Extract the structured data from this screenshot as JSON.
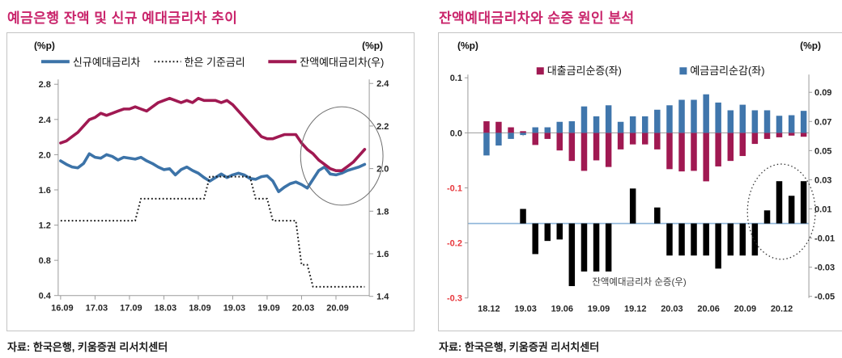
{
  "panels": [
    {
      "title": "예금은행 잔액 및 신규 예대금리차 추이",
      "source": "자료: 한국은행, 키움증권 리서치센터",
      "left_axis_unit": "(%p)",
      "right_axis_unit": "(%p)"
    },
    {
      "title": "잔액예대금리차와 순증 원인 분석",
      "source": "자료: 한국은행, 키움증권 리서치센터",
      "left_axis_unit": "(%p)",
      "right_axis_unit": "(%p)"
    }
  ],
  "colors": {
    "title": "#c9246b",
    "blue_line": "#3c73a8",
    "maroon": "#a01952",
    "policy_dotted": "#1a1a1a",
    "black_bar": "#000000",
    "baseline_blue": "#8db4d9",
    "axis_gray": "#9b9b9b",
    "tick_text": "#262626",
    "negative_tick_red": "#e8383d",
    "annotation_gray": "#404040",
    "ellipse_solid": "#6e6e6e",
    "ellipse_dotted": "#333333"
  },
  "chart_data": [
    {
      "type": "line",
      "title": "예금은행 잔액 및 신규 예대금리차 추이",
      "x_start": "16.09",
      "x_end": "21.02",
      "n_points": 54,
      "x_tick_labels": [
        "16.09",
        "17.03",
        "17.09",
        "18.03",
        "18.09",
        "19.03",
        "19.09",
        "20.03",
        "20.09"
      ],
      "x_tick_indices": [
        0,
        6,
        12,
        18,
        24,
        30,
        36,
        42,
        48
      ],
      "left_axis": {
        "unit": "(%p)",
        "tick_labels": [
          "2.8",
          "2.4",
          "2.0",
          "1.6",
          "1.2",
          "0.8",
          "0.4"
        ],
        "range": [
          0.4,
          2.8
        ]
      },
      "right_axis": {
        "unit": "(%p)",
        "tick_labels": [
          "2.4",
          "2.2",
          "2.0",
          "1.8",
          "1.6",
          "1.4"
        ],
        "range": [
          1.4,
          2.4
        ]
      },
      "series": [
        {
          "name": "신규예대금리차",
          "axis": "left",
          "style": "solid",
          "color": "#3c73a8",
          "values": [
            1.93,
            1.89,
            1.86,
            1.85,
            1.9,
            2.01,
            1.97,
            1.96,
            2.0,
            1.98,
            1.94,
            1.97,
            1.96,
            1.95,
            1.97,
            1.93,
            1.9,
            1.86,
            1.83,
            1.84,
            1.77,
            1.83,
            1.86,
            1.82,
            1.79,
            1.74,
            1.7,
            1.74,
            1.78,
            1.74,
            1.77,
            1.79,
            1.77,
            1.73,
            1.72,
            1.75,
            1.76,
            1.7,
            1.58,
            1.63,
            1.67,
            1.69,
            1.66,
            1.62,
            1.72,
            1.82,
            1.86,
            1.78,
            1.77,
            1.79,
            1.82,
            1.84,
            1.86,
            1.89
          ]
        },
        {
          "name": "한은 기준금리",
          "axis": "left",
          "style": "dotted",
          "color": "#1a1a1a",
          "values": [
            1.25,
            1.25,
            1.25,
            1.25,
            1.25,
            1.25,
            1.25,
            1.25,
            1.25,
            1.25,
            1.25,
            1.25,
            1.25,
            1.25,
            1.5,
            1.5,
            1.5,
            1.5,
            1.5,
            1.5,
            1.5,
            1.5,
            1.5,
            1.5,
            1.5,
            1.5,
            1.75,
            1.75,
            1.75,
            1.75,
            1.75,
            1.75,
            1.75,
            1.75,
            1.5,
            1.5,
            1.5,
            1.25,
            1.25,
            1.25,
            1.25,
            1.25,
            0.75,
            0.75,
            0.5,
            0.5,
            0.5,
            0.5,
            0.5,
            0.5,
            0.5,
            0.5,
            0.5,
            0.5
          ]
        },
        {
          "name": "잔액예대금리차(우)",
          "axis": "right",
          "style": "solid",
          "color": "#a01952",
          "values": [
            2.12,
            2.13,
            2.15,
            2.17,
            2.2,
            2.23,
            2.24,
            2.26,
            2.25,
            2.26,
            2.27,
            2.28,
            2.28,
            2.29,
            2.28,
            2.27,
            2.29,
            2.31,
            2.32,
            2.33,
            2.32,
            2.31,
            2.32,
            2.31,
            2.33,
            2.32,
            2.32,
            2.32,
            2.31,
            2.32,
            2.3,
            2.27,
            2.24,
            2.21,
            2.18,
            2.15,
            2.14,
            2.14,
            2.15,
            2.16,
            2.16,
            2.16,
            2.12,
            2.09,
            2.07,
            2.04,
            2.02,
            2.0,
            1.99,
            1.99,
            2.01,
            2.03,
            2.06,
            2.09
          ]
        }
      ],
      "annotation_circle": "recent-rebound"
    },
    {
      "type": "bar",
      "title": "잔액예대금리차와 순증 원인 분석",
      "categories": [
        "18.12",
        "19.01",
        "19.02",
        "19.03",
        "19.04",
        "19.05",
        "19.06",
        "19.07",
        "19.08",
        "19.09",
        "19.10",
        "19.11",
        "19.12",
        "20.01",
        "20.02",
        "20.03",
        "20.04",
        "20.05",
        "20.06",
        "20.07",
        "20.08",
        "20.09",
        "20.10",
        "20.11",
        "20.12",
        "21.01",
        "21.02"
      ],
      "x_tick_labels": [
        "18.12",
        "19.03",
        "19.06",
        "19.09",
        "19.12",
        "20.03",
        "20.06",
        "20.09",
        "20.12"
      ],
      "x_tick_indices": [
        0,
        3,
        6,
        9,
        12,
        15,
        18,
        21,
        24
      ],
      "left_axis": {
        "unit": "(%p)",
        "tick_labels": [
          "0.1",
          "0.0",
          "-0.1",
          "-0.2",
          "-0.3"
        ],
        "range": [
          -0.3,
          0.1
        ]
      },
      "right_axis": {
        "unit": "(%p)",
        "tick_labels": [
          "0.09",
          "0.07",
          "0.05",
          "0.03",
          "0.01",
          "-0.01",
          "-0.03",
          "-0.05"
        ],
        "range": [
          -0.05,
          0.09
        ]
      },
      "series": [
        {
          "name": "대출금리순증(좌)",
          "axis": "left",
          "color": "#a01952",
          "values": [
            0.021,
            0.02,
            0.01,
            0.003,
            -0.022,
            -0.011,
            -0.032,
            -0.051,
            -0.069,
            -0.05,
            -0.062,
            -0.03,
            -0.021,
            -0.021,
            -0.03,
            -0.066,
            -0.07,
            -0.069,
            -0.088,
            -0.061,
            -0.051,
            -0.042,
            -0.02,
            -0.011,
            -0.008,
            -0.005,
            -0.007
          ]
        },
        {
          "name": "예금금리순감(좌)",
          "axis": "left",
          "color": "#4076ac",
          "values": [
            -0.041,
            -0.023,
            -0.011,
            -0.004,
            0.01,
            0.01,
            0.02,
            0.021,
            0.048,
            0.03,
            0.05,
            0.02,
            0.03,
            0.03,
            0.042,
            0.05,
            0.06,
            0.06,
            0.07,
            0.055,
            0.041,
            0.051,
            0.041,
            0.041,
            0.031,
            0.032,
            0.04
          ]
        },
        {
          "name": "잔액예대금리차 순증(우)",
          "axis": "right",
          "color": "#000000",
          "values": [
            0,
            0,
            0,
            0.01,
            -0.021,
            -0.012,
            -0.011,
            -0.043,
            -0.033,
            -0.033,
            -0.033,
            0,
            0.024,
            0,
            0.011,
            -0.022,
            -0.022,
            -0.022,
            -0.022,
            -0.031,
            -0.022,
            -0.022,
            -0.022,
            0.009,
            0.029,
            0.019,
            0.029
          ]
        }
      ],
      "bar_series_label": "잔액예대금리차 순증(우)",
      "annotation_circle": "recent-positive-turn"
    }
  ]
}
